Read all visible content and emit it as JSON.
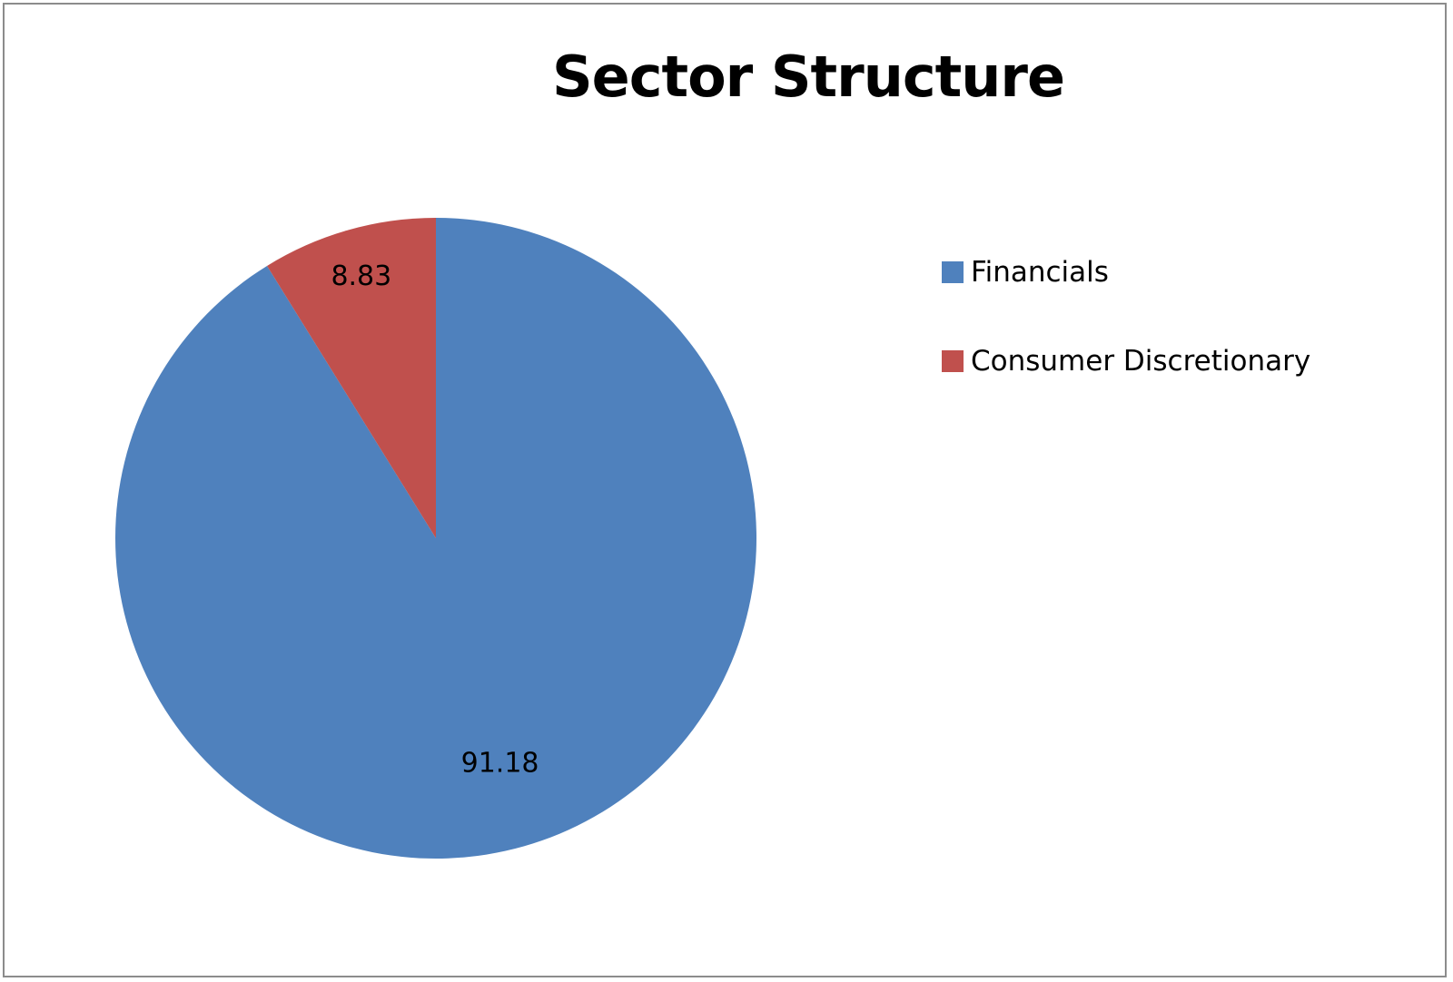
{
  "chart_data": {
    "type": "pie",
    "title": "Sector Structure",
    "categories": [
      "Financials",
      "Consumer Discretionary"
    ],
    "values": [
      91.18,
      8.83
    ],
    "data_labels": [
      "91.18",
      "8.83"
    ],
    "colors": [
      "#4F81BD",
      "#C0504D"
    ],
    "start_angle": "top",
    "direction": "clockwise",
    "legend_position": "right"
  }
}
